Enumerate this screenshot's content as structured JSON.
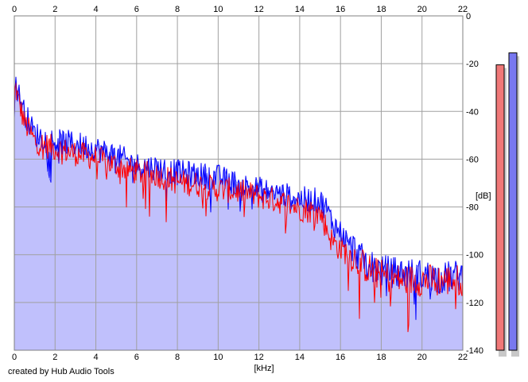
{
  "footer": {
    "credit": "created by Hub Audio Tools"
  },
  "colors": {
    "background": "#ffffff",
    "plot_fill": "#c0c0fc",
    "grid": "#a0a0a0",
    "left_channel": "#ff0000",
    "right_channel": "#0000ff",
    "meter_left": "#f07878",
    "meter_right": "#7878f0"
  },
  "chart_data": {
    "type": "line",
    "title": "",
    "xlabel": "[kHz]",
    "ylabel": "[dB]",
    "xlim": [
      0,
      22
    ],
    "ylim": [
      -140,
      0
    ],
    "x_ticks": [
      0,
      2,
      4,
      6,
      8,
      10,
      12,
      14,
      16,
      18,
      20,
      22
    ],
    "y_ticks": [
      0,
      -20,
      -40,
      -60,
      -80,
      -100,
      -120,
      -140
    ],
    "x_tick_labels": [
      "0",
      "2",
      "4",
      "6",
      "8",
      "10",
      "12",
      "14",
      "16",
      "18",
      "20",
      "22"
    ],
    "y_tick_labels": [
      "0",
      "-20",
      "-40",
      "-60",
      "-80",
      "-100",
      "-120",
      "-140"
    ],
    "grid": true,
    "legend": "none",
    "x": [
      0,
      0.05,
      0.2,
      0.5,
      1,
      2,
      3,
      4,
      5,
      6,
      7,
      8,
      9,
      10,
      11,
      12,
      13,
      14,
      15,
      15.3,
      15.6,
      16,
      16.4,
      16.8,
      17,
      17.5,
      18,
      19,
      20,
      21,
      22
    ],
    "series": [
      {
        "values": [
          -42,
          -28,
          -35,
          -44,
          -52,
          -55,
          -57,
          -59,
          -62,
          -65,
          -66,
          -69,
          -70,
          -72,
          -73,
          -75,
          -77,
          -80,
          -82,
          -88,
          -94,
          -97,
          -99,
          -101,
          -103,
          -106,
          -108,
          -110,
          -110,
          -110,
          -110
        ]
      },
      {
        "values": [
          -40,
          -26,
          -32,
          -40,
          -49,
          -52,
          -53,
          -55,
          -58,
          -62,
          -63,
          -65,
          -66,
          -67,
          -70,
          -72,
          -74,
          -76,
          -77,
          -80,
          -86,
          -90,
          -95,
          -98,
          -101,
          -104,
          -106,
          -107,
          -108,
          -109,
          -108
        ]
      }
    ],
    "meters": {
      "unit": "dB",
      "left_peak": -20.5,
      "right_peak": -15.5
    }
  }
}
